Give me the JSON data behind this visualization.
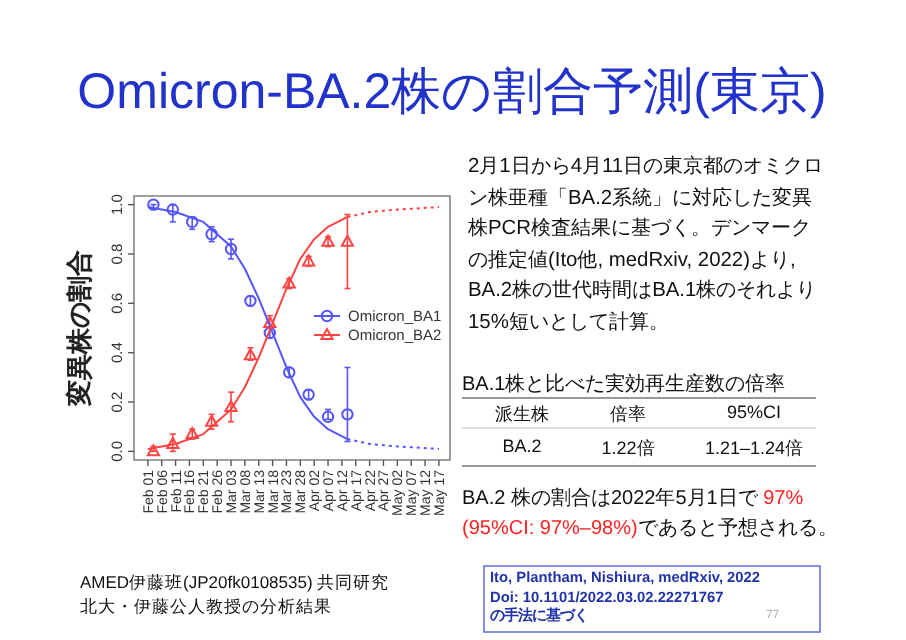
{
  "chart_data": {
    "type": "line",
    "title": "Omicron-BA.2株の割合予測(東京)",
    "ylabel": "変異株の割合",
    "xlim": [
      "--01-27",
      "--05-21"
    ],
    "xticks": [
      {
        "value": "--02-01",
        "label": "Feb 01"
      },
      {
        "value": "--02-06",
        "label": "Feb 06"
      },
      {
        "value": "--02-11",
        "label": "Feb 11"
      },
      {
        "value": "--02-16",
        "label": "Feb 16"
      },
      {
        "value": "--02-21",
        "label": "Feb 21"
      },
      {
        "value": "--02-26",
        "label": "Feb 26"
      },
      {
        "value": "--03-03",
        "label": "Mar 03"
      },
      {
        "value": "--03-08",
        "label": "Mar 08"
      },
      {
        "value": "--03-13",
        "label": "Mar 13"
      },
      {
        "value": "--03-18",
        "label": "Mar 18"
      },
      {
        "value": "--03-23",
        "label": "Mar 23"
      },
      {
        "value": "--03-28",
        "label": "Mar 28"
      },
      {
        "value": "--04-02",
        "label": "Apr 02"
      },
      {
        "value": "--04-07",
        "label": "Apr 07"
      },
      {
        "value": "--04-12",
        "label": "Apr 12"
      },
      {
        "value": "--04-17",
        "label": "Apr 17"
      },
      {
        "value": "--04-22",
        "label": "Apr 22"
      },
      {
        "value": "--04-27",
        "label": "Apr 27"
      },
      {
        "value": "--05-02",
        "label": "May 02"
      },
      {
        "value": "--05-07",
        "label": "May 07"
      },
      {
        "value": "--05-12",
        "label": "May 12"
      },
      {
        "value": "--05-17",
        "label": "May 17"
      }
    ],
    "ylim": [
      -0.035,
      1.035
    ],
    "yticks": [
      {
        "value": 0,
        "label": "0.0"
      },
      {
        "value": 0.2,
        "label": "0.2"
      },
      {
        "value": 0.4,
        "label": "0.4"
      },
      {
        "value": 0.6,
        "label": "0.6"
      },
      {
        "value": 0.8,
        "label": "0.8"
      },
      {
        "value": 1,
        "label": "1.0"
      }
    ],
    "legend": "right",
    "grid": false,
    "series": [
      {
        "name": "Omicron_BA1",
        "type": "scatter",
        "marker": "circle",
        "color": "#5555ff",
        "x": [
          "--02-03",
          "--02-10",
          "--02-17",
          "--02-24",
          "--03-03",
          "--03-10",
          "--03-17",
          "--03-24",
          "--03-31",
          "--04-07",
          "--04-14"
        ],
        "values": [
          1.0,
          0.98,
          0.93,
          0.88,
          0.82,
          0.61,
          0.48,
          0.32,
          0.23,
          0.14,
          0.15
        ],
        "errors": [
          [
            0.98,
            1.0
          ],
          [
            0.93,
            1.0
          ],
          [
            0.9,
            0.95
          ],
          [
            0.85,
            0.91
          ],
          [
            0.78,
            0.86
          ],
          [
            0.59,
            0.63
          ],
          [
            0.46,
            0.5
          ],
          [
            0.3,
            0.34
          ],
          [
            0.21,
            0.25
          ],
          [
            0.13,
            0.17
          ],
          [
            0.04,
            0.34
          ]
        ]
      },
      {
        "name": "Omicron_BA2",
        "type": "scatter",
        "marker": "triangle",
        "color": "#ff4444",
        "x": [
          "--02-03",
          "--02-10",
          "--02-17",
          "--02-24",
          "--03-03",
          "--03-10",
          "--03-17",
          "--03-24",
          "--03-31",
          "--04-07",
          "--04-14"
        ],
        "values": [
          0.0,
          0.03,
          0.07,
          0.12,
          0.18,
          0.39,
          0.52,
          0.68,
          0.77,
          0.85,
          0.85
        ],
        "errors": [
          [
            0.0,
            0.02
          ],
          [
            0.0,
            0.07
          ],
          [
            0.05,
            0.09
          ],
          [
            0.09,
            0.15
          ],
          [
            0.12,
            0.24
          ],
          [
            0.37,
            0.42
          ],
          [
            0.5,
            0.55
          ],
          [
            0.66,
            0.7
          ],
          [
            0.75,
            0.79
          ],
          [
            0.83,
            0.87
          ],
          [
            0.66,
            0.96
          ]
        ]
      },
      {
        "line_style": "solid",
        "color": "#5555ff",
        "x": [
          "--02-01",
          "--02-11",
          "--02-21",
          "--03-03",
          "--03-08",
          "--03-13",
          "--03-18",
          "--03-23",
          "--03-28",
          "--04-02",
          "--04-07",
          "--04-14"
        ],
        "values": [
          0.99,
          0.97,
          0.93,
          0.83,
          0.74,
          0.62,
          0.48,
          0.34,
          0.22,
          0.14,
          0.09,
          0.05
        ]
      },
      {
        "line_style": "dotted",
        "color": "#5555ff",
        "x": [
          "--04-14",
          "--04-22",
          "--05-02",
          "--05-17"
        ],
        "values": [
          0.05,
          0.03,
          0.02,
          0.01
        ]
      },
      {
        "line_style": "solid",
        "color": "#ff4444",
        "x": [
          "--02-01",
          "--02-11",
          "--02-21",
          "--03-03",
          "--03-08",
          "--03-13",
          "--03-18",
          "--03-23",
          "--03-28",
          "--04-02",
          "--04-07",
          "--04-14"
        ],
        "values": [
          0.01,
          0.03,
          0.07,
          0.17,
          0.26,
          0.38,
          0.52,
          0.66,
          0.78,
          0.86,
          0.91,
          0.95
        ]
      },
      {
        "line_style": "dotted",
        "color": "#ff4444",
        "x": [
          "--04-14",
          "--04-22",
          "--05-02",
          "--05-17"
        ],
        "values": [
          0.95,
          0.97,
          0.98,
          0.99
        ]
      }
    ],
    "annotations": [
      "2月1日から4月11日の東京都のオミクロン株亜種「BA.2系統」に対応した変異株PCR検査結果に基づく。デンマークの推定値(Ito他, medRxiv, 2022)より, BA.2株の世代時間はBA.1株のそれより15%短いとして計算。",
      "BA.1株と比べた実効再生産数の倍率",
      "派生株",
      "倍率",
      "95%CI",
      "BA.2",
      "1.22倍",
      "1.21–1.24倍",
      "BA.2 株の割合は2022年5月1日で ",
      "97%",
      "(95%CI: 97%–98%)",
      "であると予想される。",
      "Ito, Plantham, Nishiura, medRxiv, 2022",
      "Doi: 10.1101/2022.03.02.22271767",
      "の手法に基づく",
      "77",
      "AMED伊藤班(JP20fk0108535) 共同研究",
      "北大・伊藤公人教授の分析結果"
    ]
  }
}
